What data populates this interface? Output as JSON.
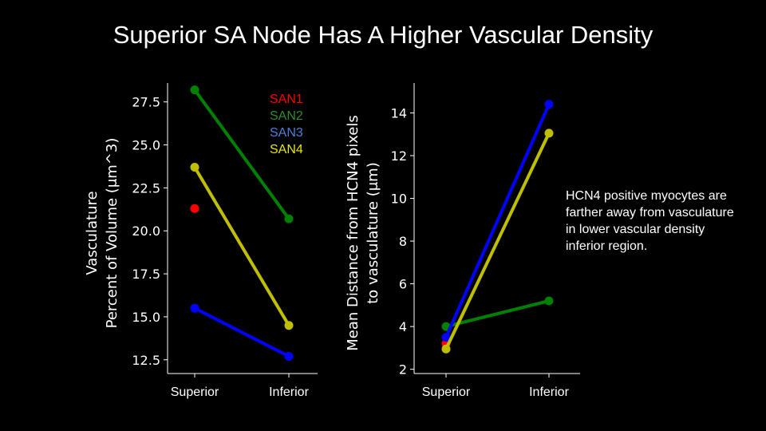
{
  "title": "Superior SA Node Has A Higher Vascular Density",
  "note": "HCN4 positive myocytes are farther away from vasculature in lower vascular density inferior region.",
  "chart_data": [
    {
      "type": "line",
      "categories": [
        "Superior",
        "Inferior"
      ],
      "ylabel_lines": [
        "Vasculature",
        "Percent of Volume (μm^3)"
      ],
      "ylim": [
        11.7,
        28.6
      ],
      "yticks": [
        "12.5",
        "15.0",
        "17.5",
        "20.0",
        "22.5",
        "25.0",
        "27.5"
      ],
      "series": [
        {
          "name": "SAN1",
          "color": "#ff0000",
          "values": [
            21.3,
            null
          ]
        },
        {
          "name": "SAN2",
          "color": "#008000",
          "values": [
            28.2,
            20.7
          ]
        },
        {
          "name": "SAN3",
          "color": "#0000ff",
          "values": [
            15.5,
            12.7
          ]
        },
        {
          "name": "SAN4",
          "color": "#bfbf00",
          "values": [
            23.7,
            14.5
          ]
        }
      ],
      "legend": {
        "placement": "top-right",
        "entries": [
          {
            "label": "SAN1",
            "color": "#ff0000"
          },
          {
            "label": "SAN2",
            "color": "#2e8b2e"
          },
          {
            "label": "SAN3",
            "color": "#4f7fd9"
          },
          {
            "label": "SAN4",
            "color": "#e6e600"
          }
        ]
      }
    },
    {
      "type": "line",
      "categories": [
        "Superior",
        "Inferior"
      ],
      "ylabel_lines": [
        "Mean Distance from HCN4 pixels",
        "to vasculature (μm)"
      ],
      "ylim": [
        1.8,
        15.4
      ],
      "yticks": [
        "2",
        "4",
        "6",
        "8",
        "10",
        "12",
        "14"
      ],
      "series": [
        {
          "name": "SAN1",
          "color": "#ff0000",
          "values": [
            3.2,
            null
          ]
        },
        {
          "name": "SAN2",
          "color": "#008000",
          "values": [
            4.0,
            5.2
          ]
        },
        {
          "name": "SAN3",
          "color": "#0000ff",
          "values": [
            3.5,
            14.4
          ]
        },
        {
          "name": "SAN4",
          "color": "#bfbf00",
          "values": [
            2.95,
            13.05
          ]
        }
      ]
    }
  ]
}
